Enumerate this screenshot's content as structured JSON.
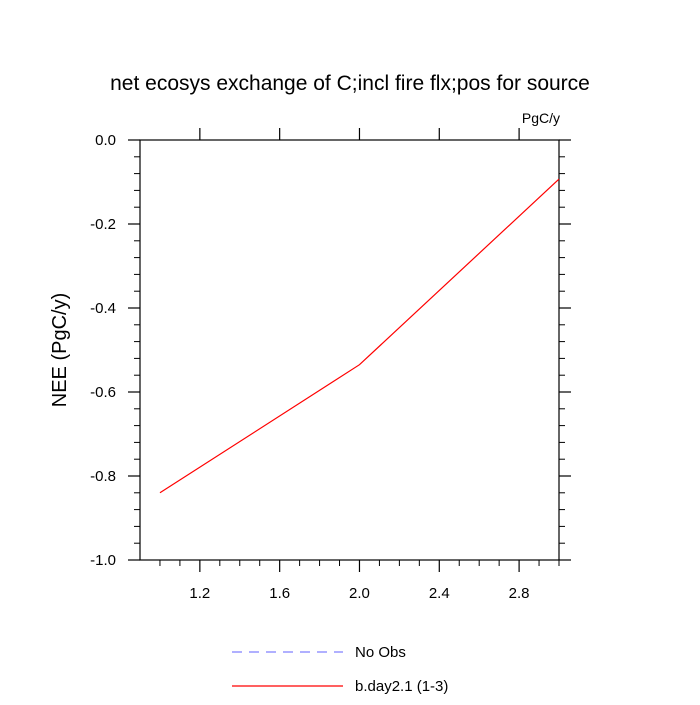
{
  "chart_data": {
    "type": "line",
    "title": "net ecosys exchange of C;incl fire flx;pos for source",
    "units": "PgC/y",
    "ylabel": "NEE  (PgC/y)",
    "xlabel": "",
    "xlim": [
      0.9,
      3.0
    ],
    "ylim": [
      -1.0,
      0.0
    ],
    "x_ticks": [
      1.2,
      1.6,
      2.0,
      2.4,
      2.8
    ],
    "x_tick_labels": [
      "1.2",
      "1.6",
      "2.0",
      "2.4",
      "2.8"
    ],
    "y_ticks": [
      0.0,
      -0.2,
      -0.4,
      -0.6,
      -0.8,
      -1.0
    ],
    "y_tick_labels": [
      "0.0",
      "-0.2",
      "-0.4",
      "-0.6",
      "-0.8",
      "-1.0"
    ],
    "grid": false,
    "legend_position": "bottom",
    "series": [
      {
        "name": "No Obs",
        "color": "#8080ff",
        "dash": "dashed",
        "x": [],
        "y": []
      },
      {
        "name": "b.day2.1 (1-3)",
        "color": "#ff0000",
        "dash": "solid",
        "x": [
          1.0,
          2.0,
          3.0
        ],
        "y": [
          -0.84,
          -0.535,
          -0.093
        ]
      }
    ]
  }
}
